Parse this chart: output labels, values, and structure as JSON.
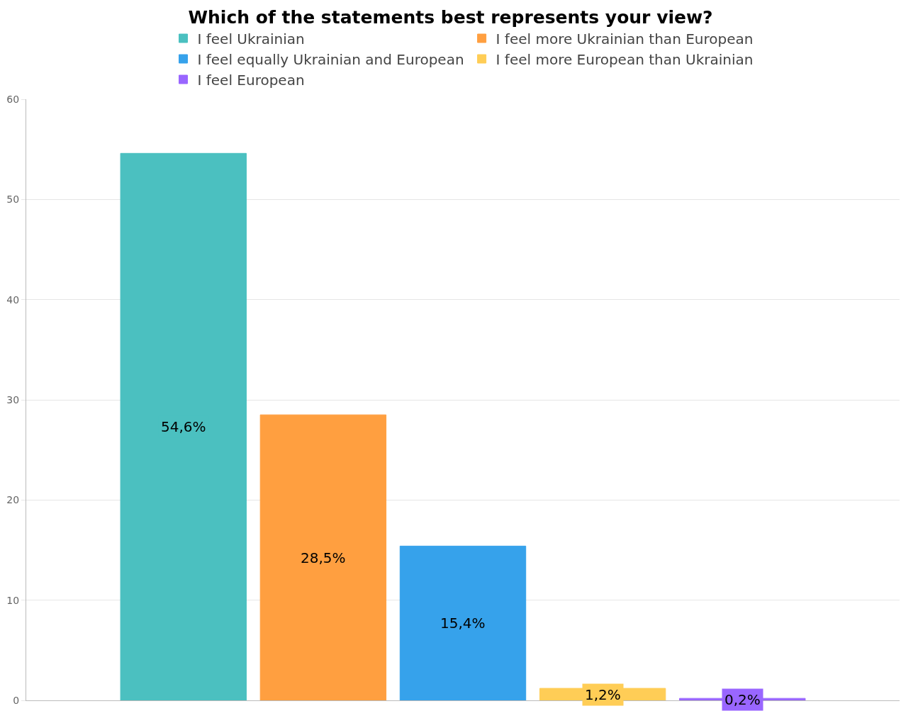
{
  "chart_data": {
    "type": "bar",
    "title": "Which of the statements best represents your view?",
    "categories": [
      null
    ],
    "series": [
      {
        "name": "I feel Ukrainian",
        "color": "#4bc0c0",
        "values": [
          54.6
        ],
        "value_labels": [
          "54,6%"
        ]
      },
      {
        "name": "I feel more Ukrainian than European",
        "color": "#ff9f40",
        "values": [
          28.5
        ],
        "value_labels": [
          "28,5%"
        ]
      },
      {
        "name": "I feel equally Ukrainian and European",
        "color": "#36a2eb",
        "values": [
          15.4
        ],
        "value_labels": [
          "15,4%"
        ]
      },
      {
        "name": "I feel more European than Ukrainian",
        "color": "#ffcd56",
        "values": [
          1.2
        ],
        "value_labels": [
          "1,2%"
        ]
      },
      {
        "name": "I feel European",
        "color": "#9966ff",
        "values": [
          0.2
        ],
        "value_labels": [
          "0,2%"
        ]
      }
    ],
    "ylim": [
      0,
      60
    ],
    "yticks": [
      0,
      10,
      20,
      30,
      40,
      50,
      60
    ],
    "grid": "y",
    "legend": "top"
  }
}
